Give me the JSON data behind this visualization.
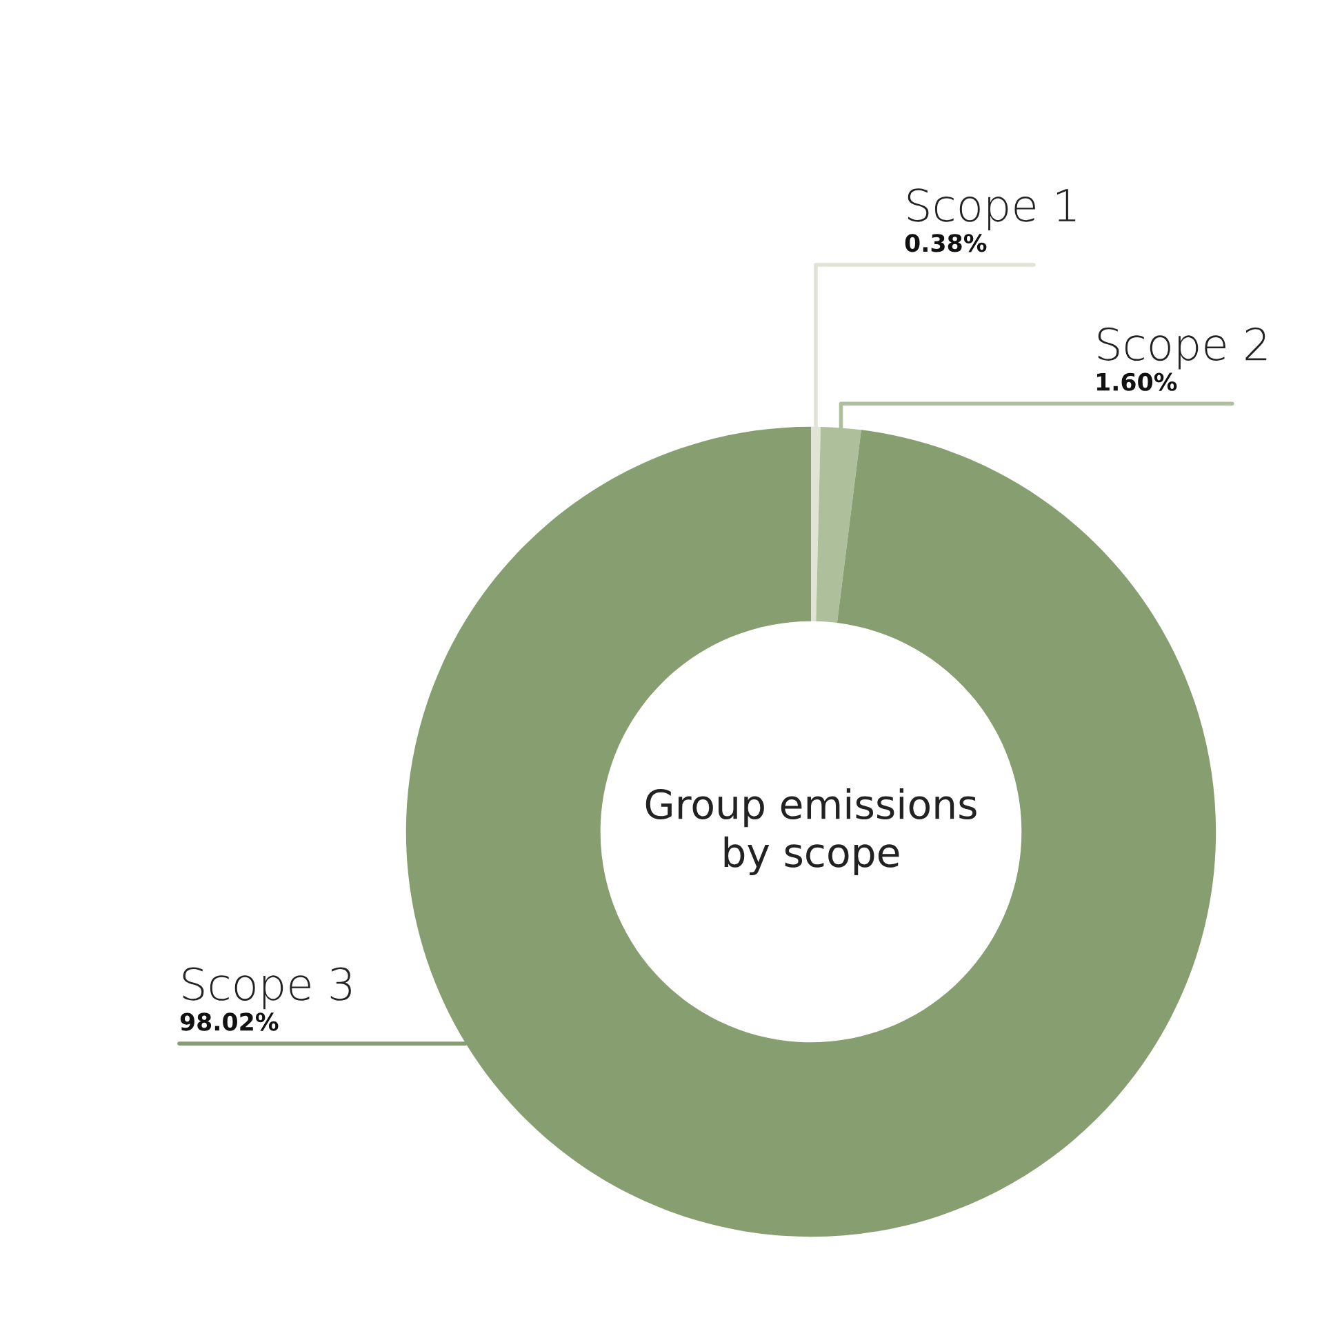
{
  "chart_data": {
    "type": "donut",
    "title": "Group emissions by scope",
    "categories": [
      "Scope 1",
      "Scope 2",
      "Scope 3"
    ],
    "values": [
      0.38,
      1.6,
      98.02
    ],
    "value_labels": [
      "0.38%",
      "1.60%",
      "98.02%"
    ],
    "colors": [
      "#dfe4d5",
      "#adbf9b",
      "#869e70"
    ],
    "legend": false
  }
}
